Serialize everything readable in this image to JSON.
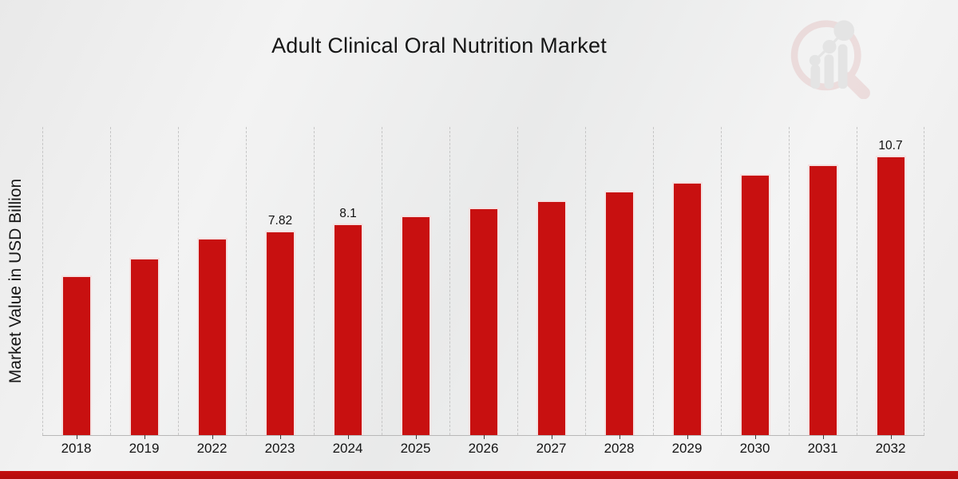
{
  "title": "Adult Clinical Oral Nutrition Market",
  "colors": {
    "bar": "#c81010",
    "footer_band": "#bb0e0e",
    "gridline": "#c6c6c6",
    "axis": "#b8b8b8",
    "text": "#161616"
  },
  "watermark_icon": "market-research-future-logo",
  "chart_data": {
    "type": "bar",
    "title": "Adult Clinical Oral Nutrition Market",
    "xlabel": "",
    "ylabel": "Market Value in USD Billion",
    "categories": [
      "2018",
      "2019",
      "2022",
      "2023",
      "2024",
      "2025",
      "2026",
      "2027",
      "2028",
      "2029",
      "2030",
      "2031",
      "2032"
    ],
    "values": [
      6.1,
      6.8,
      7.55,
      7.82,
      8.1,
      8.4,
      8.7,
      9.0,
      9.35,
      9.7,
      10.0,
      10.35,
      10.7
    ],
    "data_labels": {
      "2023": "7.82",
      "2024": "8.1",
      "2032": "10.7"
    },
    "ylim": [
      0,
      11.8
    ],
    "grid": "vertical-dashed",
    "legend": "none",
    "bar_color": "#c81010"
  }
}
